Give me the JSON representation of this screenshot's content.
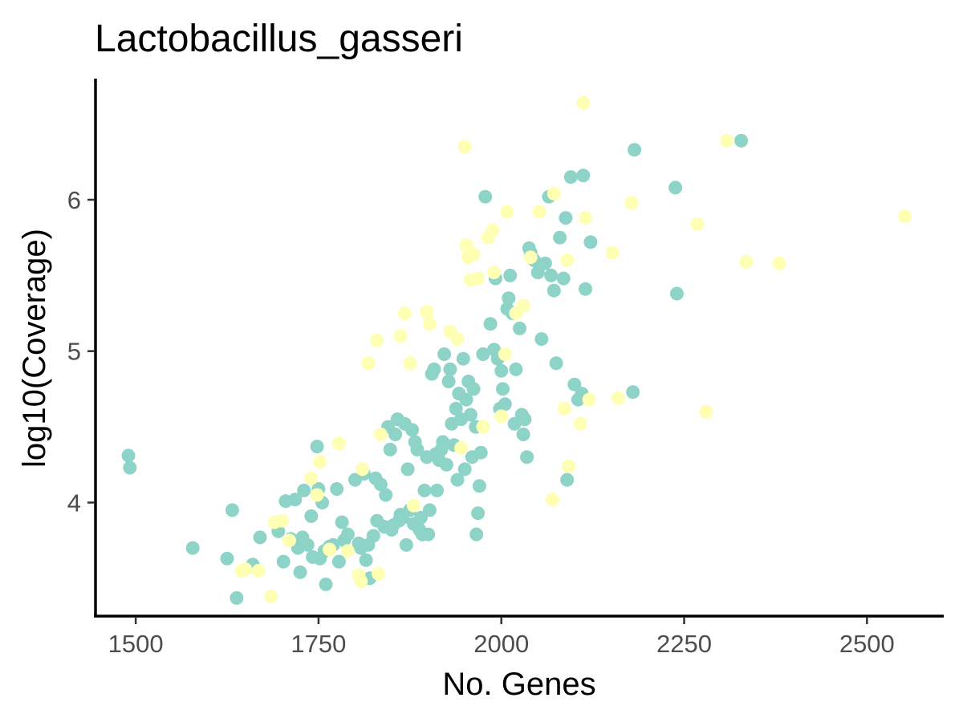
{
  "chart_data": {
    "type": "scatter",
    "title": "Lactobacillus_gasseri",
    "xlabel": "No. Genes",
    "ylabel": "log10(Coverage)",
    "xlim": [
      1445,
      2605
    ],
    "ylim": [
      3.25,
      6.8
    ],
    "xticks": [
      1500,
      1750,
      2000,
      2250,
      2500
    ],
    "yticks": [
      4,
      5,
      6
    ],
    "grid": false,
    "legend": "none",
    "series": [
      {
        "color": "#8dd3c7",
        "points": [
          [
            1490,
            4.31
          ],
          [
            1492,
            4.23
          ],
          [
            1578,
            3.7
          ],
          [
            1625,
            3.63
          ],
          [
            1632,
            3.95
          ],
          [
            1638,
            3.37
          ],
          [
            1660,
            3.59
          ],
          [
            1670,
            3.77
          ],
          [
            1695,
            3.81
          ],
          [
            1702,
            3.61
          ],
          [
            1705,
            4.01
          ],
          [
            1712,
            3.76
          ],
          [
            1718,
            4.02
          ],
          [
            1722,
            3.7
          ],
          [
            1725,
            3.54
          ],
          [
            1728,
            3.77
          ],
          [
            1730,
            4.08
          ],
          [
            1735,
            3.72
          ],
          [
            1740,
            3.91
          ],
          [
            1742,
            3.64
          ],
          [
            1748,
            4.37
          ],
          [
            1750,
            4.09
          ],
          [
            1752,
            3.63
          ],
          [
            1755,
            4.0
          ],
          [
            1758,
            3.68
          ],
          [
            1760,
            3.46
          ],
          [
            1765,
            3.71
          ],
          [
            1770,
            3.72
          ],
          [
            1775,
            4.09
          ],
          [
            1778,
            3.61
          ],
          [
            1782,
            3.87
          ],
          [
            1785,
            3.75
          ],
          [
            1790,
            3.79
          ],
          [
            1800,
            4.15
          ],
          [
            1805,
            3.73
          ],
          [
            1808,
            3.7
          ],
          [
            1812,
            4.19
          ],
          [
            1815,
            3.62
          ],
          [
            1818,
            3.72
          ],
          [
            1820,
            3.5
          ],
          [
            1825,
            3.78
          ],
          [
            1828,
            4.16
          ],
          [
            1830,
            3.88
          ],
          [
            1835,
            4.12
          ],
          [
            1840,
            3.84
          ],
          [
            1842,
            4.05
          ],
          [
            1845,
            4.5
          ],
          [
            1848,
            4.35
          ],
          [
            1850,
            3.82
          ],
          [
            1852,
            3.85
          ],
          [
            1855,
            4.45
          ],
          [
            1858,
            4.55
          ],
          [
            1860,
            3.88
          ],
          [
            1862,
            3.92
          ],
          [
            1865,
            3.9
          ],
          [
            1868,
            4.52
          ],
          [
            1870,
            3.72
          ],
          [
            1872,
            4.22
          ],
          [
            1875,
            3.95
          ],
          [
            1878,
            4.48
          ],
          [
            1880,
            3.86
          ],
          [
            1882,
            4.4
          ],
          [
            1885,
            4.35
          ],
          [
            1888,
            3.82
          ],
          [
            1890,
            3.9
          ],
          [
            1892,
            3.79
          ],
          [
            1895,
            4.08
          ],
          [
            1898,
            4.3
          ],
          [
            1900,
            3.79
          ],
          [
            1902,
            3.95
          ],
          [
            1905,
            4.85
          ],
          [
            1908,
            4.88
          ],
          [
            1910,
            4.32
          ],
          [
            1912,
            4.08
          ],
          [
            1915,
            4.28
          ],
          [
            1918,
            4.35
          ],
          [
            1920,
            4.4
          ],
          [
            1922,
            4.98
          ],
          [
            1925,
            4.25
          ],
          [
            1928,
            4.8
          ],
          [
            1930,
            4.88
          ],
          [
            1932,
            4.52
          ],
          [
            1935,
            4.38
          ],
          [
            1938,
            4.62
          ],
          [
            1940,
            4.15
          ],
          [
            1942,
            4.72
          ],
          [
            1945,
            4.55
          ],
          [
            1948,
            4.95
          ],
          [
            1950,
            4.22
          ],
          [
            1952,
            4.68
          ],
          [
            1955,
            4.8
          ],
          [
            1958,
            4.58
          ],
          [
            1960,
            4.3
          ],
          [
            1962,
            4.75
          ],
          [
            1965,
            4.5
          ],
          [
            1966,
            3.79
          ],
          [
            1968,
            3.93
          ],
          [
            1970,
            4.11
          ],
          [
            1972,
            4.33
          ],
          [
            1975,
            4.98
          ],
          [
            1978,
            6.02
          ],
          [
            1985,
            5.18
          ],
          [
            1990,
            5.01
          ],
          [
            1992,
            5.48
          ],
          [
            1995,
            4.95
          ],
          [
            1998,
            4.62
          ],
          [
            2000,
            4.87
          ],
          [
            2002,
            4.75
          ],
          [
            2005,
            4.65
          ],
          [
            2008,
            5.28
          ],
          [
            2010,
            5.35
          ],
          [
            2012,
            5.5
          ],
          [
            2015,
            5.25
          ],
          [
            2018,
            4.52
          ],
          [
            2020,
            4.88
          ],
          [
            2025,
            5.15
          ],
          [
            2028,
            4.58
          ],
          [
            2030,
            4.45
          ],
          [
            2032,
            4.55
          ],
          [
            2035,
            4.3
          ],
          [
            2038,
            5.68
          ],
          [
            2040,
            5.65
          ],
          [
            2045,
            5.6
          ],
          [
            2050,
            5.52
          ],
          [
            2055,
            5.08
          ],
          [
            2060,
            5.58
          ],
          [
            2065,
            6.02
          ],
          [
            2068,
            5.5
          ],
          [
            2072,
            5.4
          ],
          [
            2075,
            4.92
          ],
          [
            2080,
            5.75
          ],
          [
            2085,
            5.48
          ],
          [
            2088,
            5.88
          ],
          [
            2090,
            4.15
          ],
          [
            2095,
            6.15
          ],
          [
            2100,
            4.78
          ],
          [
            2105,
            4.68
          ],
          [
            2110,
            4.72
          ],
          [
            2112,
            6.16
          ],
          [
            2115,
            5.41
          ],
          [
            2122,
            5.72
          ],
          [
            2180,
            4.73
          ],
          [
            2182,
            6.33
          ],
          [
            2238,
            6.08
          ],
          [
            2240,
            5.38
          ],
          [
            2328,
            6.39
          ]
        ]
      },
      {
        "color": "#ffffb3",
        "points": [
          [
            1645,
            3.55
          ],
          [
            1650,
            3.56
          ],
          [
            1668,
            3.55
          ],
          [
            1685,
            3.38
          ],
          [
            1690,
            3.87
          ],
          [
            1700,
            3.88
          ],
          [
            1710,
            3.75
          ],
          [
            1740,
            4.16
          ],
          [
            1748,
            4.05
          ],
          [
            1752,
            4.27
          ],
          [
            1765,
            3.69
          ],
          [
            1778,
            4.39
          ],
          [
            1790,
            3.68
          ],
          [
            1805,
            3.52
          ],
          [
            1808,
            3.48
          ],
          [
            1810,
            4.22
          ],
          [
            1818,
            4.92
          ],
          [
            1830,
            5.07
          ],
          [
            1832,
            3.53
          ],
          [
            1835,
            4.45
          ],
          [
            1862,
            5.1
          ],
          [
            1868,
            5.25
          ],
          [
            1875,
            4.92
          ],
          [
            1880,
            3.98
          ],
          [
            1898,
            5.26
          ],
          [
            1902,
            5.18
          ],
          [
            1930,
            5.13
          ],
          [
            1940,
            5.08
          ],
          [
            1945,
            4.36
          ],
          [
            1950,
            6.35
          ],
          [
            1952,
            5.7
          ],
          [
            1955,
            5.62
          ],
          [
            1958,
            5.47
          ],
          [
            1962,
            5.64
          ],
          [
            1968,
            5.48
          ],
          [
            1975,
            4.5
          ],
          [
            1982,
            5.75
          ],
          [
            1988,
            5.8
          ],
          [
            1990,
            5.52
          ],
          [
            2000,
            4.57
          ],
          [
            2005,
            4.98
          ],
          [
            2008,
            5.92
          ],
          [
            2020,
            5.25
          ],
          [
            2030,
            5.3
          ],
          [
            2040,
            5.62
          ],
          [
            2052,
            5.92
          ],
          [
            2072,
            6.04
          ],
          [
            2086,
            4.62
          ],
          [
            2090,
            5.6
          ],
          [
            2092,
            4.24
          ],
          [
            2108,
            4.52
          ],
          [
            2112,
            6.64
          ],
          [
            2115,
            5.88
          ],
          [
            2120,
            4.68
          ],
          [
            2152,
            5.65
          ],
          [
            2160,
            4.69
          ],
          [
            2178,
            5.98
          ],
          [
            2268,
            5.84
          ],
          [
            2280,
            4.6
          ],
          [
            2308,
            6.39
          ],
          [
            2335,
            5.59
          ],
          [
            2380,
            5.58
          ],
          [
            2552,
            5.89
          ],
          [
            2070,
            4.02
          ]
        ]
      }
    ]
  }
}
